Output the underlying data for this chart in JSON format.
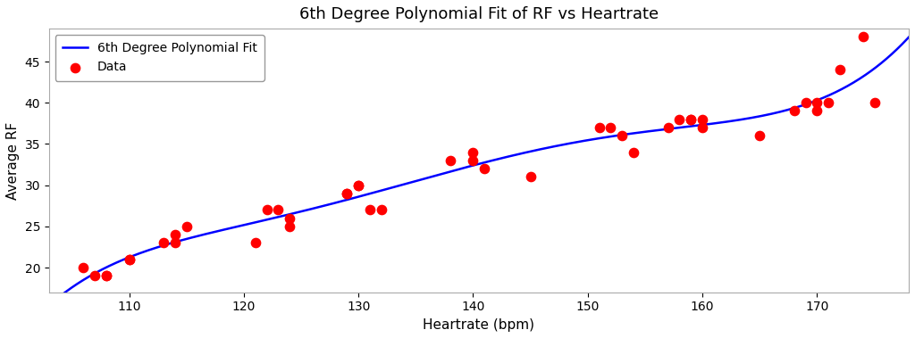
{
  "title": "6th Degree Polynomial Fit of RF vs Heartrate",
  "xlabel": "Heartrate (bpm)",
  "ylabel": "Average RF",
  "legend_poly": "6th Degree Polynomial Fit",
  "legend_data": "Data",
  "scatter_color": "red",
  "poly_color": "blue",
  "xlim": [
    103,
    178
  ],
  "ylim": [
    17,
    49
  ],
  "scatter_x": [
    106,
    107,
    108,
    108,
    110,
    110,
    113,
    114,
    114,
    115,
    121,
    122,
    123,
    124,
    124,
    129,
    129,
    130,
    130,
    131,
    132,
    138,
    140,
    140,
    141,
    145,
    151,
    152,
    153,
    154,
    157,
    158,
    159,
    159,
    160,
    160,
    165,
    168,
    169,
    170,
    170,
    171,
    172,
    174,
    175
  ],
  "scatter_y": [
    20,
    19,
    19,
    19,
    21,
    21,
    23,
    24,
    23,
    25,
    23,
    27,
    27,
    26,
    25,
    29,
    29,
    30,
    30,
    27,
    27,
    33,
    34,
    33,
    32,
    31,
    37,
    37,
    36,
    34,
    37,
    38,
    38,
    38,
    38,
    37,
    36,
    39,
    40,
    40,
    39,
    40,
    44,
    48,
    40
  ],
  "poly_degree": 6,
  "background_color": "white",
  "title_fontsize": 13,
  "label_fontsize": 11,
  "tick_fontsize": 10,
  "scatter_size": 55,
  "scatter_zorder": 5,
  "poly_linewidth": 1.8,
  "poly_zorder": 3,
  "figwidth": 10.24,
  "figheight": 3.79,
  "dpi": 100
}
